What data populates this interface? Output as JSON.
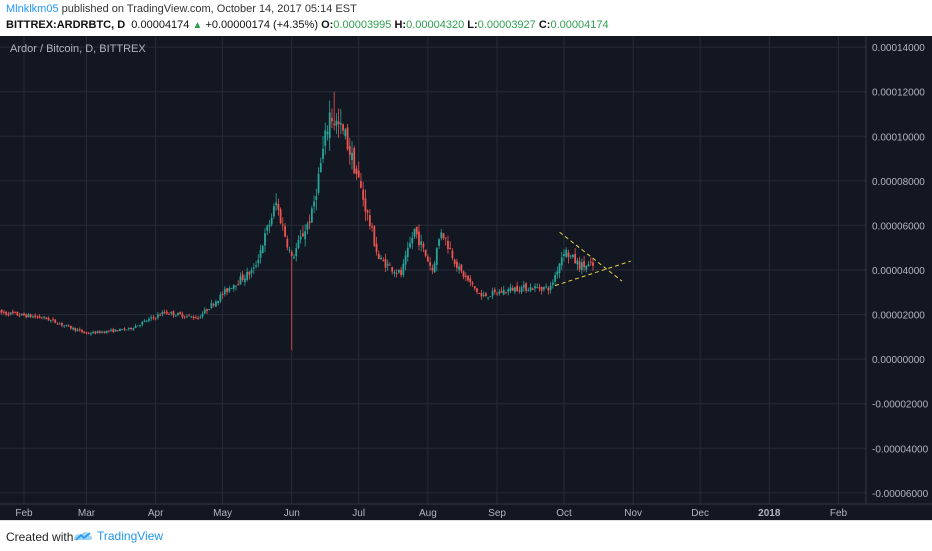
{
  "header": {
    "user": "Mlnklkm05",
    "published_text": "published on TradingView.com, October 14, 2017 05:14 EST",
    "symbol": "BITTREX:ARDRBTC, D",
    "price": "0.00004174",
    "change": "+0.00000174 (+4.35%)",
    "o_label": "O:",
    "o_value": "0.00003995",
    "h_label": "H:",
    "h_value": "0.00004320",
    "l_label": "L:",
    "l_value": "0.00003927",
    "c_label": "C:",
    "c_value": "0.00004174"
  },
  "footer": {
    "created_with": "Created with",
    "brand": "TradingView"
  },
  "colors": {
    "background": "#131722",
    "up": "#26a69a",
    "down": "#ef5350",
    "grid": "#262b38",
    "trendline": "#e8d34a",
    "axis_text": "#b2b5be"
  },
  "chart_data": {
    "type": "candlestick",
    "title": "Ardor / Bitcoin, D, BITTREX",
    "x_tick_labels": [
      "Feb",
      "Mar",
      "Apr",
      "May",
      "Jun",
      "Jul",
      "Aug",
      "Sep",
      "Oct",
      "Nov",
      "Dec",
      "2018",
      "Feb"
    ],
    "y_tick_labels": [
      "0.00014000",
      "0.00012000",
      "0.00010000",
      "0.00008000",
      "0.00006000",
      "0.00004000",
      "0.00002000",
      "0.00000000",
      "-0.00002000",
      "-0.00004000",
      "-0.00006000"
    ],
    "ylim": [
      -6.5e-05,
      0.000145
    ],
    "grid": true,
    "price_anchors": [
      {
        "date": "2017-01-21",
        "close": 2.1e-05
      },
      {
        "date": "2017-02-10",
        "close": 1.85e-05
      },
      {
        "date": "2017-03-01",
        "close": 1.15e-05
      },
      {
        "date": "2017-03-20",
        "close": 1.35e-05
      },
      {
        "date": "2017-04-05",
        "close": 2.1e-05
      },
      {
        "date": "2017-04-20",
        "close": 1.85e-05
      },
      {
        "date": "2017-05-05",
        "close": 3.3e-05
      },
      {
        "date": "2017-05-15",
        "close": 4e-05
      },
      {
        "date": "2017-05-25",
        "close": 7e-05
      },
      {
        "date": "2017-06-01",
        "close": 4.5e-05
      },
      {
        "date": "2017-06-10",
        "close": 6.5e-05
      },
      {
        "date": "2017-06-18",
        "close": 0.00011
      },
      {
        "date": "2017-06-25",
        "close": 0.0001
      },
      {
        "date": "2017-07-01",
        "close": 8e-05
      },
      {
        "date": "2017-07-10",
        "close": 4.5e-05
      },
      {
        "date": "2017-07-20",
        "close": 3.8e-05
      },
      {
        "date": "2017-07-26",
        "close": 5.8e-05
      },
      {
        "date": "2017-08-03",
        "close": 4e-05
      },
      {
        "date": "2017-08-07",
        "close": 5.8e-05
      },
      {
        "date": "2017-08-15",
        "close": 4e-05
      },
      {
        "date": "2017-08-25",
        "close": 2.8e-05
      },
      {
        "date": "2017-09-10",
        "close": 3.2e-05
      },
      {
        "date": "2017-09-25",
        "close": 3.2e-05
      },
      {
        "date": "2017-10-01",
        "close": 4.9e-05
      },
      {
        "date": "2017-10-08",
        "close": 4.2e-05
      },
      {
        "date": "2017-10-14",
        "close": 4.17e-05
      }
    ],
    "notable_wicks": [
      {
        "date": "2017-06-01",
        "low": 4e-06
      },
      {
        "date": "2017-06-20",
        "high": 0.00012
      }
    ],
    "trendlines": [
      {
        "from": {
          "date": "2017-09-29",
          "value": 5.7e-05
        },
        "to": {
          "date": "2017-10-27",
          "value": 3.5e-05
        }
      },
      {
        "from": {
          "date": "2017-09-27",
          "value": 3.3e-05
        },
        "to": {
          "date": "2017-10-31",
          "value": 4.4e-05
        }
      }
    ]
  }
}
